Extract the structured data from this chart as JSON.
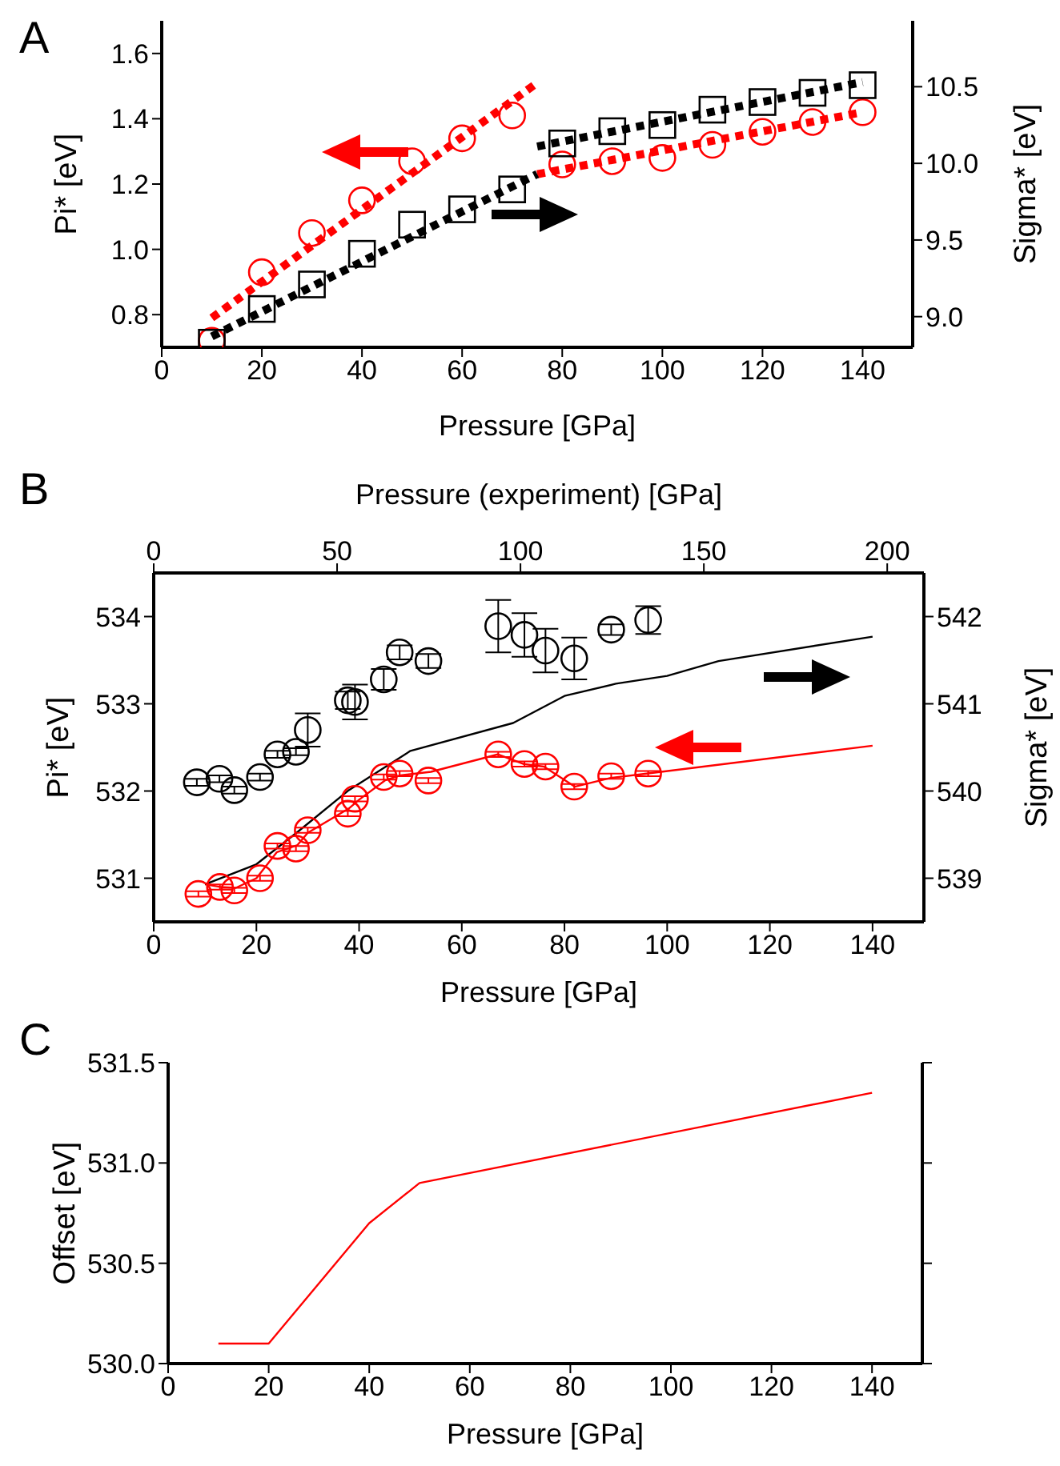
{
  "chart_data": [
    {
      "type": "scatter",
      "title": "A",
      "xlabel": "Pressure [GPa]",
      "ylabel": "Pi* [eV]",
      "y2label": "Sigma* [eV]",
      "xlim": [
        0,
        150
      ],
      "xticks": [
        0,
        20,
        40,
        60,
        80,
        100,
        120,
        140
      ],
      "ylim": [
        0.7,
        1.7
      ],
      "yticks": [
        0.8,
        {
          "value": 1.0,
          "label": "1.0"
        },
        1.2,
        1.4,
        1.6
      ],
      "y2lim": [
        8.8,
        10.93
      ],
      "y2ticks": [
        {
          "value": 9.0,
          "label": "9.0"
        },
        9.5,
        {
          "value": 10.0,
          "label": "10.0"
        },
        10.5
      ],
      "series": [
        {
          "marker": "circle",
          "color": "#ff0000",
          "x": [
            10,
            20,
            30,
            40,
            50,
            60,
            70,
            80,
            90,
            100,
            110,
            120,
            130,
            140
          ],
          "values": [
            0.72,
            0.93,
            1.05,
            1.15,
            1.27,
            1.34,
            1.41,
            1.26,
            1.27,
            1.28,
            1.32,
            1.36,
            1.39,
            1.42
          ]
        },
        {
          "marker": "square",
          "axis": "y2",
          "color": "#000000",
          "x": [
            10,
            20,
            30,
            40,
            50,
            60,
            70,
            80,
            90,
            100,
            110,
            120,
            130,
            140
          ],
          "values": [
            8.83,
            9.05,
            9.21,
            9.41,
            9.6,
            9.7,
            9.83,
            10.13,
            10.21,
            10.25,
            10.35,
            10.4,
            10.46,
            10.51
          ]
        },
        {
          "type": "line",
          "marker": "none",
          "line_style": "dotted",
          "color": "#ff0000",
          "x": [
            10,
            75
          ],
          "values": [
            0.79,
            1.51
          ]
        },
        {
          "type": "line",
          "marker": "none",
          "line_style": "dotted",
          "color": "#ff0000",
          "x": [
            75,
            140
          ],
          "values": [
            1.23,
            1.42
          ]
        },
        {
          "type": "line",
          "marker": "none",
          "line_style": "dotted",
          "axis": "y2",
          "color": "#000000",
          "x": [
            10,
            75
          ],
          "values": [
            8.87,
            9.93
          ]
        },
        {
          "type": "line",
          "marker": "none",
          "line_style": "dotted",
          "axis": "y2",
          "color": "#000000",
          "x": [
            75,
            140
          ],
          "values": [
            10.11,
            10.53
          ]
        }
      ]
    },
    {
      "type": "line",
      "title": "B",
      "xlabel": "Pressure [GPa]",
      "x2label": "Pressure (experiment) [GPa]",
      "ylabel": "Pi* [eV]",
      "y2label": "Sigma* [eV]",
      "xlim": [
        0,
        150
      ],
      "xticks": [
        0,
        20,
        40,
        60,
        80,
        100,
        120,
        140
      ],
      "x2lim": [
        0,
        210
      ],
      "x2ticks": [
        0,
        50,
        100,
        150,
        200
      ],
      "ylim": [
        530.5,
        534.5
      ],
      "yticks": [
        531,
        532,
        533,
        534
      ],
      "y2lim": [
        538.5,
        542.5
      ],
      "y2ticks": [
        539,
        540,
        541,
        542
      ],
      "series": [
        {
          "marker": "none",
          "line_style": "solid",
          "color": "#ff0000",
          "x": [
            10,
            13,
            16,
            20,
            24,
            28,
            30,
            38,
            40,
            45,
            48,
            54,
            67,
            72,
            76,
            82,
            89,
            96,
            140
          ],
          "values": [
            530.93,
            530.9,
            530.89,
            531.0,
            531.3,
            531.38,
            531.52,
            531.8,
            531.9,
            532.12,
            532.18,
            532.22,
            532.42,
            532.31,
            532.28,
            532.05,
            532.15,
            532.2,
            532.52
          ]
        },
        {
          "marker": "none",
          "line_style": "solid",
          "axis": "y2",
          "color": "#000000",
          "x": [
            10,
            20,
            28,
            38,
            50,
            70,
            80,
            90,
            100,
            110,
            140
          ],
          "values": [
            538.93,
            539.16,
            539.53,
            540.01,
            540.46,
            540.78,
            541.09,
            541.23,
            541.32,
            541.49,
            541.77
          ]
        },
        {
          "type": "scatter",
          "marker": "circle",
          "color": "#ff0000",
          "x": [
            8.7,
            12.9,
            15.7,
            20.7,
            24.1,
            27.7,
            30,
            37.8,
            39.2,
            44.8,
            47.9,
            53.5,
            67.1,
            72.2,
            76.3,
            81.9,
            89.1,
            96.3
          ],
          "values": [
            530.82,
            530.9,
            530.86,
            531.0,
            531.37,
            531.34,
            531.55,
            531.74,
            531.91,
            532.16,
            532.2,
            532.12,
            532.42,
            532.31,
            532.28,
            532.05,
            532.17,
            532.2
          ],
          "errors": [
            0.03,
            0.03,
            0.03,
            0.03,
            0.03,
            0.03,
            0.03,
            0.03,
            0.03,
            0.03,
            0.03,
            0.03,
            0.03,
            0.03,
            0.03,
            0.03,
            0.03,
            0.03
          ]
        },
        {
          "type": "scatter",
          "marker": "circle",
          "axis": "y2",
          "color": "#000000",
          "x": [
            8.4,
            12.8,
            15.7,
            20.7,
            24.1,
            27.7,
            30,
            37.8,
            39.2,
            44.8,
            47.9,
            53.5,
            67.1,
            72.2,
            76.3,
            81.9,
            89.1,
            96.3
          ],
          "values": [
            540.1,
            540.14,
            540.01,
            540.16,
            540.42,
            540.45,
            540.7,
            541.04,
            541.02,
            541.28,
            541.59,
            541.49,
            541.89,
            541.79,
            541.61,
            541.52,
            541.85,
            541.96
          ],
          "errors": [
            0.04,
            0.04,
            0.04,
            0.04,
            0.04,
            0.04,
            0.19,
            0.1,
            0.2,
            0.12,
            0.08,
            0.08,
            0.3,
            0.25,
            0.25,
            0.24,
            0.06,
            0.16
          ]
        }
      ]
    },
    {
      "type": "line",
      "title": "C",
      "xlabel": "Pressure [GPa]",
      "ylabel": "Offset [eV]",
      "xlim": [
        0,
        150
      ],
      "xticks": [
        0,
        20,
        40,
        60,
        80,
        100,
        120,
        140
      ],
      "ylim": [
        530,
        531.5
      ],
      "yticks": [
        {
          "value": 530.0,
          "label": "530.0"
        },
        530.5,
        {
          "value": 531.0,
          "label": "531.0"
        },
        531.5
      ],
      "color": "#ff0000",
      "x": [
        10,
        20,
        40,
        50,
        140
      ],
      "values": [
        530.1,
        530.1,
        530.7,
        530.9,
        531.35
      ]
    }
  ]
}
